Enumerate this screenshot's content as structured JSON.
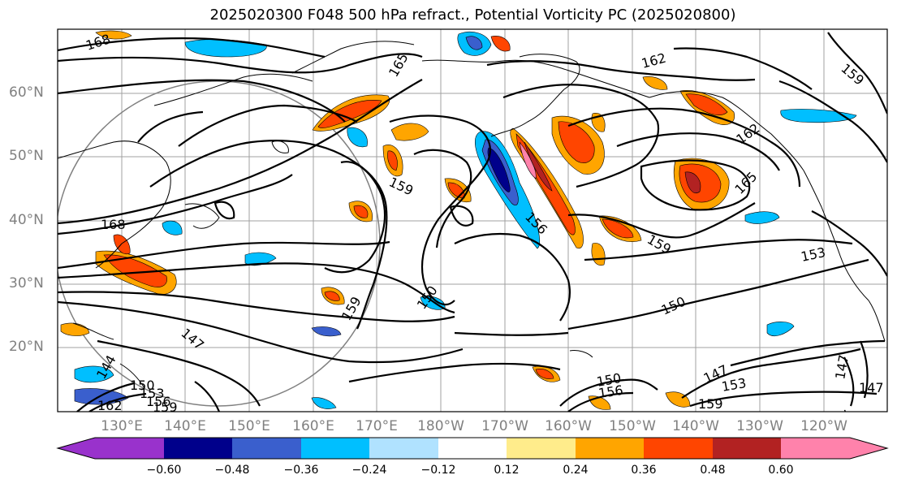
{
  "title": "2025020300 F048 500 hPa refract., Potential Vorticity PC (2025020800)",
  "lat_labels": [
    "60°N",
    "50°N",
    "40°N",
    "30°N",
    "20°N"
  ],
  "lon_labels": [
    "130°E",
    "140°E",
    "150°E",
    "160°E",
    "170°E",
    "180°W",
    "170°W",
    "160°W",
    "150°W",
    "140°W",
    "130°W",
    "120°W"
  ],
  "contour_labels": [
    "168",
    "165",
    "162",
    "159",
    "162",
    "165",
    "168",
    "159",
    "156",
    "159",
    "153",
    "150",
    "159",
    "150",
    "147",
    "144",
    "150",
    "153",
    "156",
    "159",
    "162",
    "150",
    "156",
    "147",
    "153",
    "159",
    "147",
    "150",
    "147"
  ],
  "colorbar": {
    "ticks": [
      "−0.60",
      "−0.48",
      "−0.36",
      "−0.24",
      "−0.12",
      "0.12",
      "0.24",
      "0.36",
      "0.48",
      "0.60"
    ],
    "colors": [
      "#9932cc",
      "#00008b",
      "#3a5fcd",
      "#00bfff",
      "#b0e2ff",
      "#ffffff",
      "#ffec8b",
      "#ffa500",
      "#ff4500",
      "#b22222",
      "#ff82ab"
    ]
  }
}
